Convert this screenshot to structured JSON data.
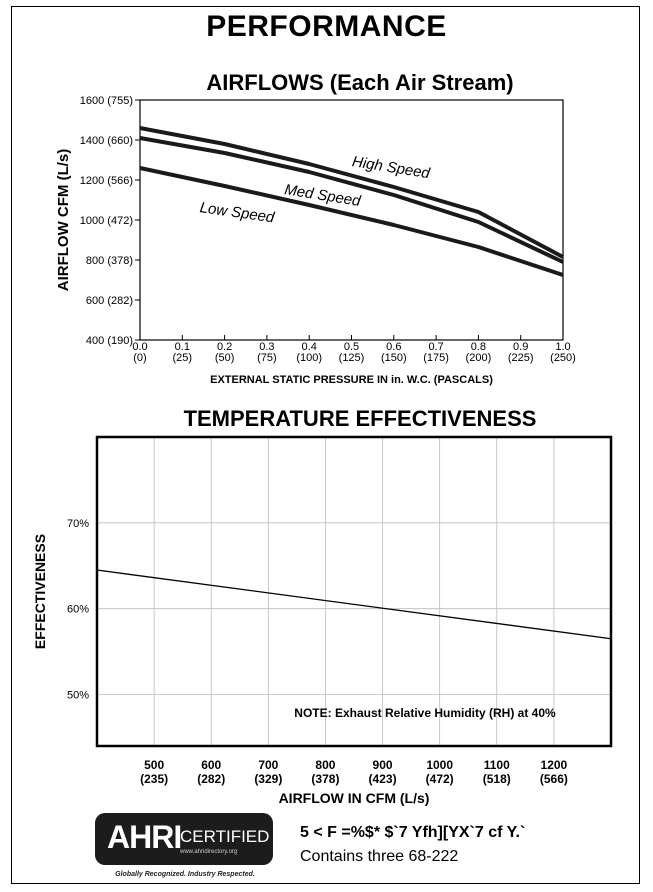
{
  "page": {
    "title": "PERFORMANCE",
    "cert_line1": "5 < F =%$* $`7 Yfh][YX`7 cf Y.`",
    "cert_line2": "Contains three 68-222",
    "ahri": {
      "mark": "AHRI",
      "certified": "CERTIFIED",
      "url": "www.ahridirectory.org",
      "tagline": "Globally Recognized. Industry Respected."
    }
  },
  "chart_data": [
    {
      "type": "line",
      "title": "AIRFLOWS (Each Air Stream)",
      "xlabel": "EXTERNAL STATIC PRESSURE IN in. W.C. (PASCALS)",
      "ylabel": "AIRFLOW CFM (L/s)",
      "xlim": [
        0,
        1.0
      ],
      "ylim": [
        400,
        1600
      ],
      "x_ticks": [
        0.0,
        0.1,
        0.2,
        0.3,
        0.4,
        0.5,
        0.6,
        0.7,
        0.8,
        0.9,
        1.0
      ],
      "x_tick_labels": [
        "0.0",
        "0.1",
        "0.2",
        "0.3",
        "0.4",
        "0.5",
        "0.6",
        "0.7",
        "0.8",
        "0.9",
        "1.0"
      ],
      "x_tick_sublabels": [
        "(0)",
        "(25)",
        "(50)",
        "(75)",
        "(100)",
        "(125)",
        "(150)",
        "(175)",
        "(200)",
        "(225)",
        "(250)"
      ],
      "y_ticks": [
        400,
        600,
        800,
        1000,
        1200,
        1400,
        1600
      ],
      "y_tick_labels": [
        "400 (190)",
        "600 (282)",
        "800 (378)",
        "1000 (472)",
        "1200 (566)",
        "1400 (660)",
        "1600 (755)"
      ],
      "grid": false,
      "series": [
        {
          "name": "High Speed",
          "x": [
            0,
            0.2,
            0.4,
            0.6,
            0.8,
            1.0
          ],
          "y": [
            1460,
            1380,
            1280,
            1165,
            1040,
            815
          ]
        },
        {
          "name": "Med Speed",
          "x": [
            0,
            0.2,
            0.4,
            0.6,
            0.8,
            1.0
          ],
          "y": [
            1410,
            1335,
            1240,
            1125,
            990,
            790
          ]
        },
        {
          "name": "Low Speed",
          "x": [
            0,
            0.2,
            0.4,
            0.6,
            0.8,
            1.0
          ],
          "y": [
            1260,
            1170,
            1075,
            975,
            865,
            725
          ]
        }
      ]
    },
    {
      "type": "line",
      "title": "TEMPERATURE EFFECTIVENESS",
      "xlabel": "AIRFLOW IN CFM (L/s)",
      "ylabel": "EFFECTIVENESS",
      "xlim": [
        400,
        1300
      ],
      "ylim": [
        44,
        80
      ],
      "x_ticks": [
        500,
        600,
        700,
        800,
        900,
        1000,
        1100,
        1200
      ],
      "x_tick_labels": [
        "500",
        "600",
        "700",
        "800",
        "900",
        "1000",
        "1100",
        "1200"
      ],
      "x_tick_sublabels": [
        "(235)",
        "(282)",
        "(329)",
        "(378)",
        "(423)",
        "(472)",
        "(518)",
        "(566)"
      ],
      "y_ticks": [
        50,
        60,
        70
      ],
      "y_tick_labels": [
        "50%",
        "60%",
        "70%"
      ],
      "grid": true,
      "note": "NOTE: Exhaust Relative Humidity (RH) at 40%",
      "series": [
        {
          "x": [
            400,
            1300
          ],
          "y": [
            64.5,
            56.5
          ]
        }
      ]
    }
  ]
}
